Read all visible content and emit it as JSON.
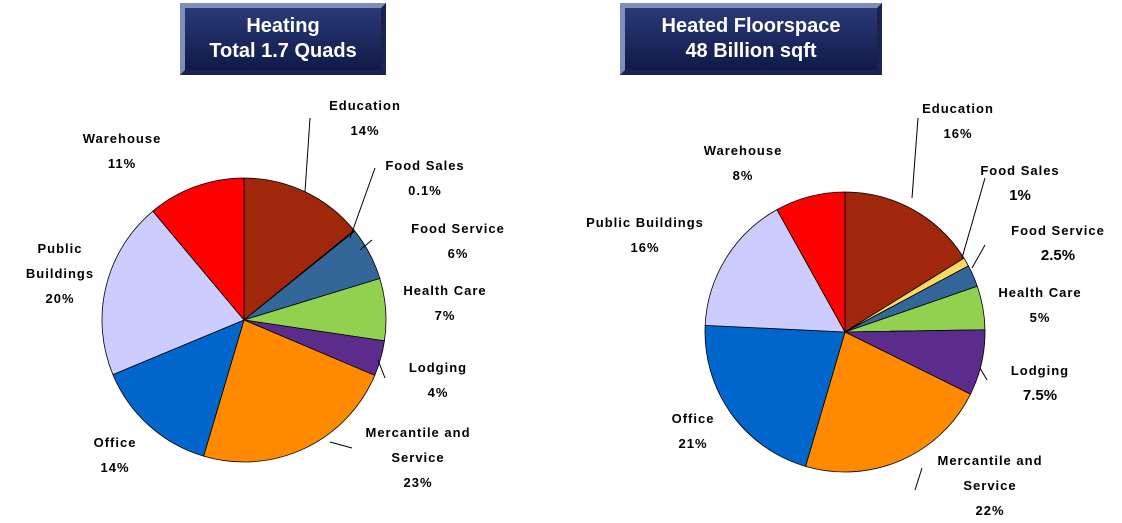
{
  "chart_data": [
    {
      "type": "pie",
      "title": "Heating",
      "subtitle": "Total 1.7 Quads",
      "categories": [
        "Education",
        "Food Sales",
        "Food Service",
        "Health Care",
        "Lodging",
        "Mercantile and Service",
        "Office",
        "Public Buildings",
        "Warehouse"
      ],
      "values": [
        14,
        0.1,
        6,
        7,
        4,
        23,
        14,
        20,
        11
      ],
      "value_labels": [
        "14%",
        "0.1%",
        "6%",
        "7%",
        "4%",
        "23%",
        "14%",
        "20%",
        "11%"
      ],
      "colors": [
        "#a0260c",
        "#ffd966",
        "#336699",
        "#92d050",
        "#5b2c8c",
        "#ff8a00",
        "#0066cc",
        "#ccccff",
        "#ff0000"
      ]
    },
    {
      "type": "pie",
      "title": "Heated Floorspace",
      "subtitle": "48 Billion sqft",
      "categories": [
        "Education",
        "Food Sales",
        "Food Service",
        "Health Care",
        "Lodging",
        "Mercantile and Service",
        "Office",
        "Public Buildings",
        "Warehouse"
      ],
      "values": [
        16,
        1,
        2.5,
        5,
        7.5,
        22,
        21,
        16,
        8
      ],
      "value_labels": [
        "16%",
        "1%",
        "2.5%",
        "5%",
        "7.5%",
        "22%",
        "21%",
        "16%",
        "8%"
      ],
      "colors": [
        "#a0260c",
        "#ffd966",
        "#336699",
        "#92d050",
        "#5b2c8c",
        "#ff8a00",
        "#0066cc",
        "#ccccff",
        "#ff0000"
      ]
    }
  ]
}
